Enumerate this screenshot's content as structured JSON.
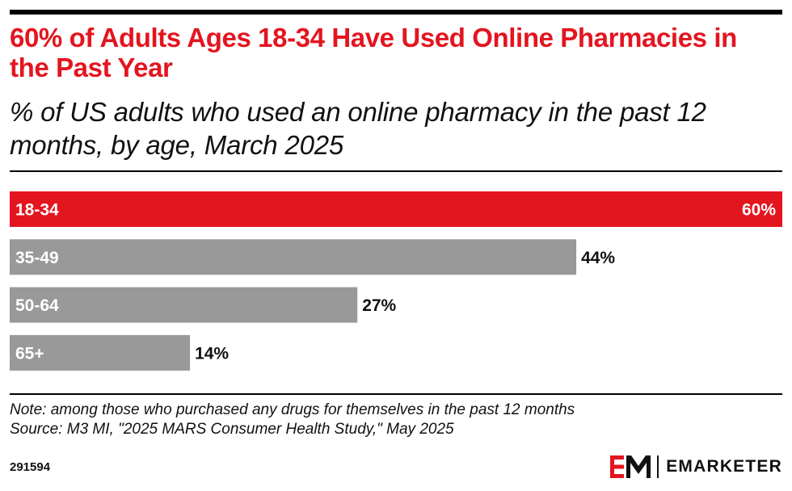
{
  "title": "60% of Adults Ages 18-34 Have Used Online Pharmacies in the Past Year",
  "subtitle": "% of US adults who used an online pharmacy in the past 12 months, by age, March 2025",
  "note": "Note: among those who purchased any drugs for themselves in the past 12 months",
  "source": "Source: M3 MI, \"2025 MARS Consumer Health Study,\" May 2025",
  "chart_id": "291594",
  "brand": {
    "name": "EMARKETER",
    "accent_color": "#e3151f"
  },
  "chart_data": {
    "type": "bar",
    "orientation": "horizontal",
    "categories": [
      "18-34",
      "35-49",
      "50-64",
      "65+"
    ],
    "values": [
      60,
      44,
      27,
      14
    ],
    "value_labels": [
      "60%",
      "44%",
      "27%",
      "14%"
    ],
    "unit": "%",
    "xlim": [
      0,
      60
    ],
    "highlight_index": 0,
    "colors": {
      "highlight": "#e3151f",
      "default": "#999999"
    },
    "grid": false,
    "legend": "none"
  }
}
